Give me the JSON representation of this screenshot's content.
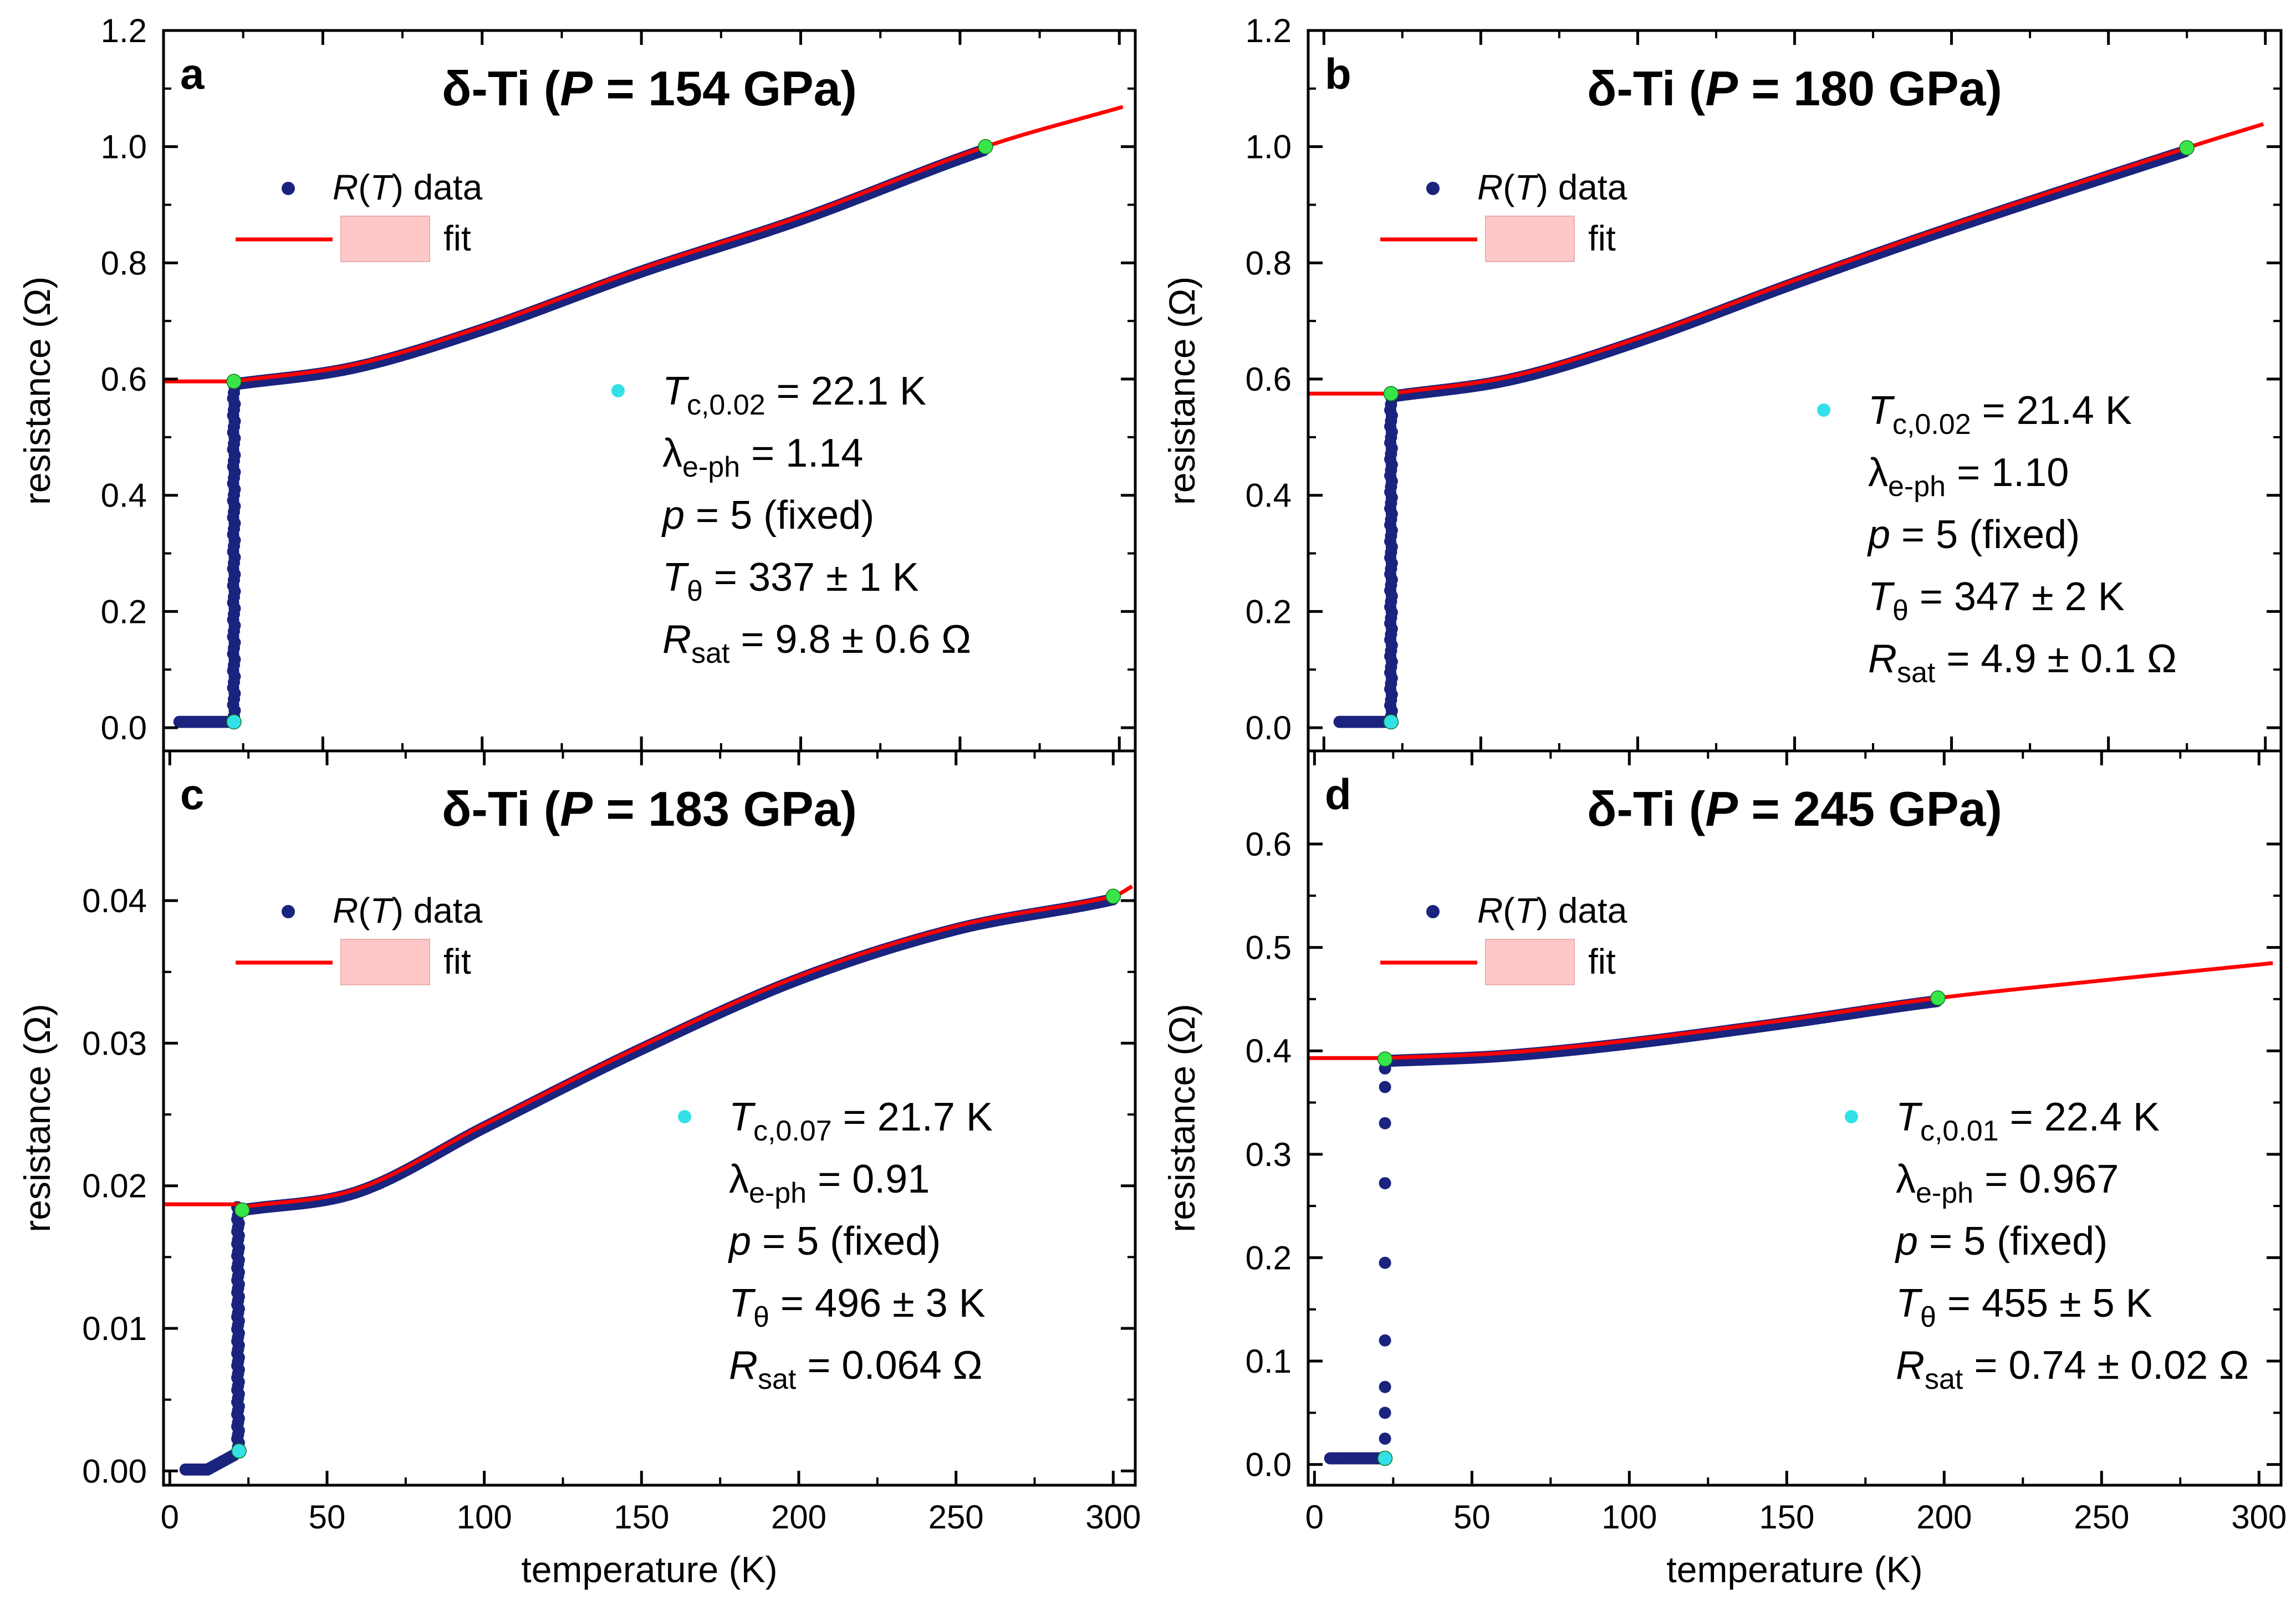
{
  "chart_data": [
    {
      "type": "scatter",
      "panel": "a",
      "title": "δ-Ti (P = 154 GPa)",
      "title_prefix": "δ-Ti (",
      "title_var": "P",
      "title_suffix": " = 154 GPa)",
      "xlabel": "temperature (K)",
      "ylabel": "resistance (Ω)",
      "xlim": [
        0,
        305
      ],
      "ylim": [
        -0.04,
        1.2
      ],
      "xticks": [
        0,
        50,
        100,
        150,
        200,
        250,
        300
      ],
      "yticks": [
        0.0,
        0.2,
        0.4,
        0.6,
        0.8,
        1.0,
        1.2
      ],
      "ytick_labels": [
        "0.0",
        "0.2",
        "0.4",
        "0.6",
        "0.8",
        "1.0",
        "1.2"
      ],
      "show_xtick_labels": false,
      "show_xlabel": false,
      "legend": {
        "data_label_var": "R",
        "data_label_arg": "T",
        "data_label_suffix": " data",
        "fit_label": "fit"
      },
      "Tc": 22.1,
      "R0": 0.596,
      "Rmax_T": 258,
      "Rmax": 1.0,
      "fit_end_T": 302,
      "fit_end_R": 1.07,
      "shape": [
        [
          22.1,
          0.596
        ],
        [
          60,
          0.625
        ],
        [
          100,
          0.69
        ],
        [
          150,
          0.79
        ],
        [
          200,
          0.88
        ],
        [
          258,
          1.0
        ],
        [
          302,
          1.07
        ]
      ],
      "series": [
        {
          "name": "R(T) data",
          "color": "#1a237e"
        },
        {
          "name": "fit",
          "color": "#ff0000"
        }
      ],
      "markers": [
        {
          "name": "Tc point",
          "x": 22.1,
          "y": 0.01,
          "color": "#33e0e8"
        },
        {
          "name": "onset",
          "x": 22.1,
          "y": 0.596,
          "color": "#39e64a"
        },
        {
          "name": "end",
          "x": 258,
          "y": 1.0,
          "color": "#39e64a"
        }
      ],
      "annotations": [
        {
          "var": "T",
          "sub": "c,0.02",
          "value": " = 22.1 K"
        },
        {
          "var": "λ",
          "sub": "e-ph",
          "value": " = 1.14"
        },
        {
          "var": "p",
          "sub": "",
          "value": " = 5 (fixed)"
        },
        {
          "var": "T",
          "sub": "θ",
          "value": " = 337 ± 1 K"
        },
        {
          "var": "R",
          "sub": "sat",
          "value": " = 9.8 ± 0.6 Ω"
        }
      ]
    },
    {
      "type": "scatter",
      "panel": "b",
      "title": "δ-Ti (P = 180 GPa)",
      "title_prefix": "δ-Ti (",
      "title_var": "P",
      "title_suffix": " = 180 GPa)",
      "xlabel": "temperature (K)",
      "ylabel": "resistance (Ω)",
      "xlim": [
        -5,
        305
      ],
      "ylim": [
        -0.04,
        1.2
      ],
      "xticks": [
        0,
        50,
        100,
        150,
        200,
        250,
        300
      ],
      "yticks": [
        0.0,
        0.2,
        0.4,
        0.6,
        0.8,
        1.0,
        1.2
      ],
      "ytick_labels": [
        "0.0",
        "0.2",
        "0.4",
        "0.6",
        "0.8",
        "1.0",
        "1.2"
      ],
      "show_xtick_labels": false,
      "show_xlabel": false,
      "legend": {
        "data_label_var": "R",
        "data_label_arg": "T",
        "data_label_suffix": " data",
        "fit_label": "fit"
      },
      "Tc": 21.4,
      "R0": 0.575,
      "Rmax_T": 275,
      "Rmax": 0.998,
      "fit_end_T": 300,
      "fit_end_R": 1.04,
      "shape": [
        [
          21.4,
          0.575
        ],
        [
          60,
          0.605
        ],
        [
          100,
          0.67
        ],
        [
          150,
          0.77
        ],
        [
          200,
          0.865
        ],
        [
          275,
          0.998
        ],
        [
          300,
          1.04
        ]
      ],
      "series": [
        {
          "name": "R(T) data",
          "color": "#1a237e"
        },
        {
          "name": "fit",
          "color": "#ff0000"
        }
      ],
      "markers": [
        {
          "name": "Tc point",
          "x": 21.4,
          "y": 0.01,
          "color": "#33e0e8"
        },
        {
          "name": "onset",
          "x": 21.4,
          "y": 0.575,
          "color": "#39e64a"
        },
        {
          "name": "end",
          "x": 275,
          "y": 0.998,
          "color": "#39e64a"
        }
      ],
      "annotations": [
        {
          "var": "T",
          "sub": "c,0.02",
          "value": " = 21.4 K"
        },
        {
          "var": "λ",
          "sub": "e-ph",
          "value": " = 1.10"
        },
        {
          "var": "p",
          "sub": "",
          "value": " = 5 (fixed)"
        },
        {
          "var": "T",
          "sub": "θ",
          "value": " = 347 ± 2 K"
        },
        {
          "var": "R",
          "sub": "sat",
          "value": " = 4.9 ± 0.1 Ω"
        }
      ]
    },
    {
      "type": "scatter",
      "panel": "c",
      "title": "δ-Ti (P = 183 GPa)",
      "title_prefix": "δ-Ti (",
      "title_var": "P",
      "title_suffix": " = 183 GPa)",
      "xlabel": "temperature (K)",
      "ylabel": "resistance (Ω)",
      "xlim": [
        -2,
        307
      ],
      "ylim": [
        -0.001,
        0.0505
      ],
      "xticks": [
        0,
        50,
        100,
        150,
        200,
        250,
        300
      ],
      "yticks": [
        0.0,
        0.01,
        0.02,
        0.03,
        0.04
      ],
      "ytick_labels": [
        "0.00",
        "0.01",
        "0.02",
        "0.03",
        "0.04"
      ],
      "show_xtick_labels": true,
      "show_xlabel": true,
      "legend": {
        "data_label_var": "R",
        "data_label_arg": "T",
        "data_label_suffix": " data",
        "fit_label": "fit"
      },
      "Tc": 21.7,
      "R0": 0.0187,
      "Rmax_T": 300,
      "Rmax": 0.0403,
      "fit_end_T": 306,
      "fit_end_R": 0.041,
      "shape": [
        [
          23,
          0.0185
        ],
        [
          60,
          0.0198
        ],
        [
          100,
          0.0243
        ],
        [
          150,
          0.0298
        ],
        [
          200,
          0.0347
        ],
        [
          250,
          0.0382
        ],
        [
          300,
          0.0403
        ],
        [
          306,
          0.041
        ]
      ],
      "series": [
        {
          "name": "R(T) data",
          "color": "#1a237e"
        },
        {
          "name": "fit",
          "color": "#ff0000"
        }
      ],
      "markers": [
        {
          "name": "Tc point",
          "x": 22,
          "y": 0.0014,
          "color": "#33e0e8"
        },
        {
          "name": "onset",
          "x": 23,
          "y": 0.0183,
          "color": "#39e64a"
        },
        {
          "name": "end",
          "x": 300,
          "y": 0.0403,
          "color": "#39e64a"
        }
      ],
      "annotations": [
        {
          "var": "T",
          "sub": "c,0.07",
          "value": " = 21.7 K"
        },
        {
          "var": "λ",
          "sub": "e-ph",
          "value": " = 0.91"
        },
        {
          "var": "p",
          "sub": "",
          "value": " = 5 (fixed)"
        },
        {
          "var": "T",
          "sub": "θ",
          "value": " = 496 ± 3 K"
        },
        {
          "var": "R",
          "sub": "sat",
          "value": " = 0.064 Ω"
        }
      ]
    },
    {
      "type": "scatter",
      "panel": "d",
      "title": "δ-Ti (P = 245 GPa)",
      "title_prefix": "δ-Ti (",
      "title_var": "P",
      "title_suffix": " = 245 GPa)",
      "xlabel": "temperature (K)",
      "ylabel": "resistance (Ω)",
      "xlim": [
        -2,
        307
      ],
      "ylim": [
        -0.02,
        0.69
      ],
      "xticks": [
        0,
        50,
        100,
        150,
        200,
        250,
        300
      ],
      "yticks": [
        0.0,
        0.1,
        0.2,
        0.3,
        0.4,
        0.5,
        0.6
      ],
      "ytick_labels": [
        "0.0",
        "0.1",
        "0.2",
        "0.3",
        "0.4",
        "0.5",
        "0.6"
      ],
      "show_xtick_labels": true,
      "show_xlabel": true,
      "legend": {
        "data_label_var": "R",
        "data_label_arg": "T",
        "data_label_suffix": " data",
        "fit_label": "fit"
      },
      "Tc": 22.4,
      "R0": 0.393,
      "Rmax_T": 198,
      "Rmax": 0.451,
      "fit_end_T": 305,
      "fit_end_R": 0.485,
      "shape": [
        [
          22.4,
          0.393
        ],
        [
          60,
          0.398
        ],
        [
          100,
          0.41
        ],
        [
          150,
          0.43
        ],
        [
          198,
          0.451
        ],
        [
          250,
          0.468
        ],
        [
          305,
          0.485
        ]
      ],
      "transition_points": [
        0.005,
        0.025,
        0.05,
        0.075,
        0.12,
        0.195,
        0.272,
        0.33,
        0.365,
        0.383
      ],
      "series": [
        {
          "name": "R(T) data",
          "color": "#1a237e"
        },
        {
          "name": "fit",
          "color": "#ff0000"
        }
      ],
      "markers": [
        {
          "name": "Tc point",
          "x": 22.4,
          "y": 0.006,
          "color": "#33e0e8"
        },
        {
          "name": "onset",
          "x": 22.4,
          "y": 0.392,
          "color": "#39e64a"
        },
        {
          "name": "end",
          "x": 198,
          "y": 0.451,
          "color": "#39e64a"
        }
      ],
      "annotations": [
        {
          "var": "T",
          "sub": "c,0.01",
          "value": " = 22.4 K"
        },
        {
          "var": "λ",
          "sub": "e-ph",
          "value": " = 0.967"
        },
        {
          "var": "p",
          "sub": "",
          "value": " = 5 (fixed)"
        },
        {
          "var": "T",
          "sub": "θ",
          "value": " = 455 ± 5 K"
        },
        {
          "var": "R",
          "sub": "sat",
          "value": " = 0.74 ± 0.02 Ω"
        }
      ]
    }
  ]
}
